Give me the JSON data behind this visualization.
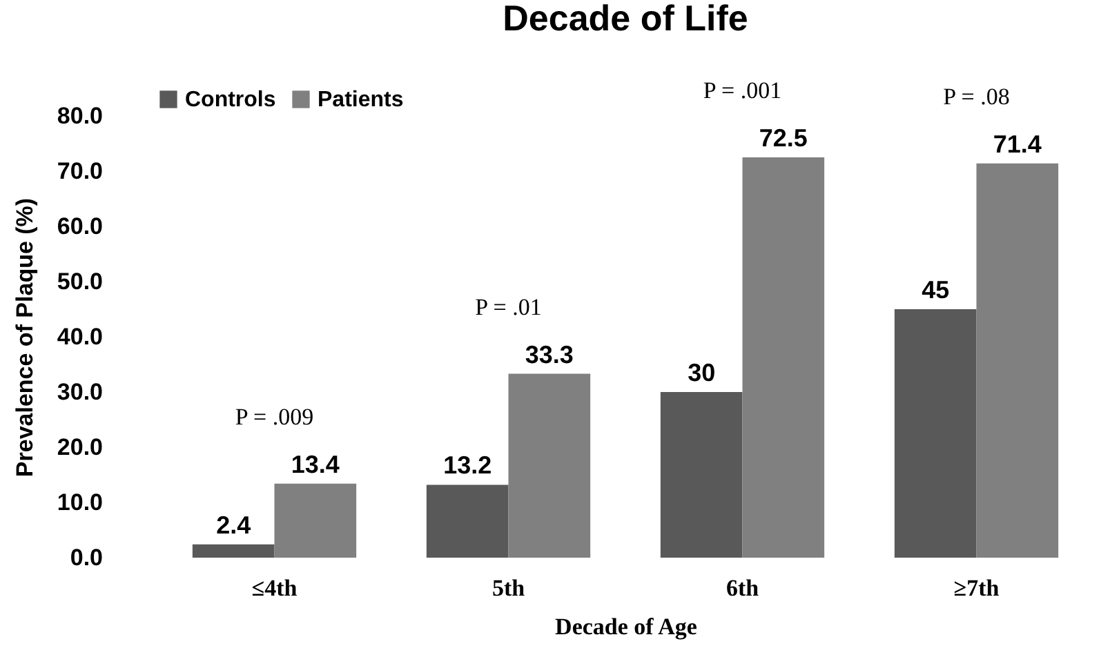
{
  "chart_data": {
    "type": "bar",
    "title": "Decade of Life",
    "xlabel": "Decade of Age",
    "ylabel": "Prevalence of Plaque (%)",
    "categories": [
      "≤4th",
      "5th",
      "6th",
      "≥7th"
    ],
    "series": [
      {
        "name": "Controls",
        "color": "#595959",
        "values": [
          2.4,
          13.2,
          30,
          45
        ]
      },
      {
        "name": "Patients",
        "color": "#808080",
        "values": [
          13.4,
          33.3,
          72.5,
          71.4
        ]
      }
    ],
    "data_labels": true,
    "ylim": [
      0,
      80
    ],
    "yticks": [
      {
        "value": 0,
        "label": "0.0"
      },
      {
        "value": 10,
        "label": "10.0"
      },
      {
        "value": 20,
        "label": "20.0"
      },
      {
        "value": 30,
        "label": "30.0"
      },
      {
        "value": 40,
        "label": "40.0"
      },
      {
        "value": 50,
        "label": "50.0"
      },
      {
        "value": 60,
        "label": "60.0"
      },
      {
        "value": 70,
        "label": "70.0"
      },
      {
        "value": 80,
        "label": "80.0"
      }
    ],
    "grid": false,
    "legend": "top",
    "annotations": [
      "P = .009",
      "P = .01",
      "P = .001",
      "P = .08"
    ]
  }
}
